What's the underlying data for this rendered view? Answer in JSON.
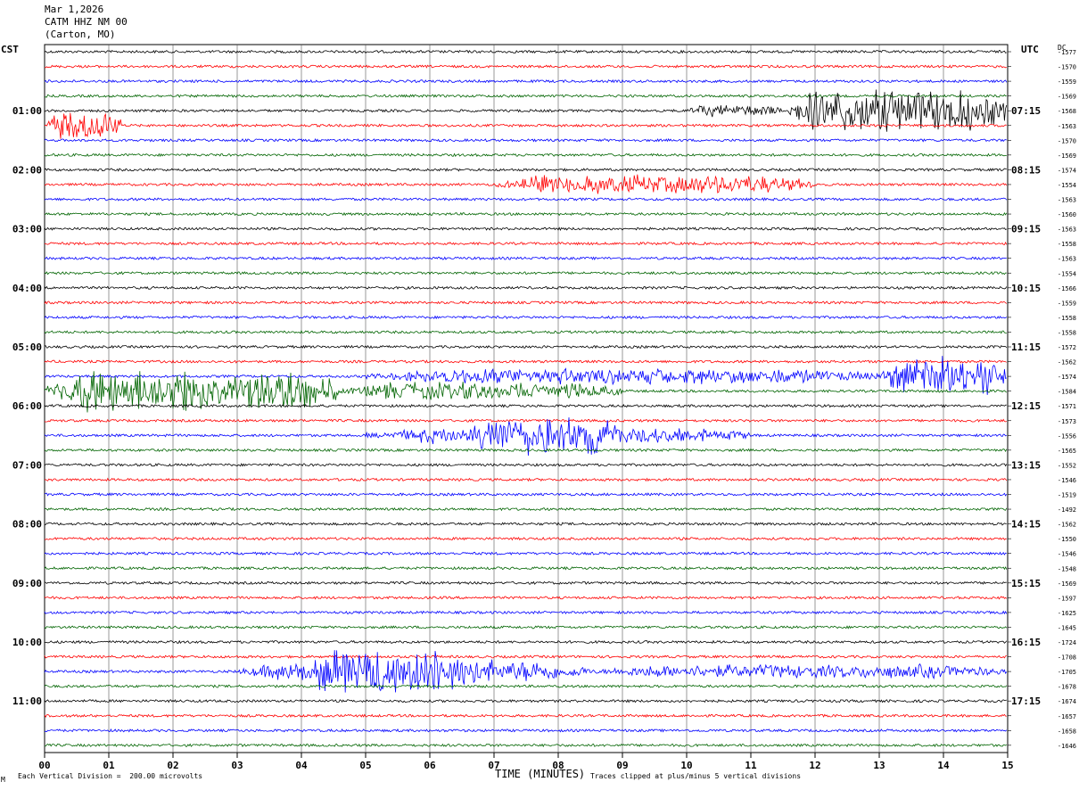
{
  "header": {
    "date": "Mar 1,2026",
    "station": "CATM HHZ NM 00",
    "location": "(Carton, MO)"
  },
  "left_timezone": "CST",
  "right_timezone": "UTC",
  "dc_label": "DC",
  "footer": {
    "scale_note": "Each Vertical Division =  200.00 microvolts",
    "clip_note": "Traces clipped at plus/minus 5 vertical divisions",
    "mark": "M"
  },
  "colors": {
    "trace_cycle": [
      "#000000",
      "#ff0000",
      "#0000ff",
      "#006400"
    ],
    "grid": "#000000"
  },
  "chart_data": {
    "type": "line",
    "title": "",
    "xlabel": "TIME (MINUTES)",
    "ylabel": "",
    "x_ticks": [
      "00",
      "01",
      "02",
      "03",
      "04",
      "05",
      "06",
      "07",
      "08",
      "09",
      "10",
      "11",
      "12",
      "13",
      "14",
      "15"
    ],
    "xlim": [
      0,
      15
    ],
    "minutes_per_trace": 15,
    "left_hour_labels": [
      {
        "trace": 4,
        "label": "01:00"
      },
      {
        "trace": 8,
        "label": "02:00"
      },
      {
        "trace": 12,
        "label": "03:00"
      },
      {
        "trace": 16,
        "label": "04:00"
      },
      {
        "trace": 20,
        "label": "05:00"
      },
      {
        "trace": 24,
        "label": "06:00"
      },
      {
        "trace": 28,
        "label": "07:00"
      },
      {
        "trace": 32,
        "label": "08:00"
      },
      {
        "trace": 36,
        "label": "09:00"
      },
      {
        "trace": 40,
        "label": "10:00"
      },
      {
        "trace": 44,
        "label": "11:00"
      }
    ],
    "right_hour_labels": [
      {
        "trace": 4,
        "label": "07:15"
      },
      {
        "trace": 8,
        "label": "08:15"
      },
      {
        "trace": 12,
        "label": "09:15"
      },
      {
        "trace": 16,
        "label": "10:15"
      },
      {
        "trace": 20,
        "label": "11:15"
      },
      {
        "trace": 24,
        "label": "12:15"
      },
      {
        "trace": 28,
        "label": "13:15"
      },
      {
        "trace": 32,
        "label": "14:15"
      },
      {
        "trace": 36,
        "label": "15:15"
      },
      {
        "trace": 40,
        "label": "16:15"
      },
      {
        "trace": 44,
        "label": "17:15"
      }
    ],
    "dc_offsets": [
      -1577,
      -1570,
      -1559,
      -1569,
      -1568,
      -1563,
      -1570,
      -1569,
      -1574,
      -1554,
      -1563,
      -1560,
      -1563,
      -1558,
      -1563,
      -1554,
      -1566,
      -1559,
      -1558,
      -1558,
      -1572,
      -1562,
      -1574,
      -1584,
      -1571,
      -1573,
      -1556,
      -1565,
      -1552,
      -1546,
      -1519,
      -1492,
      -1562,
      -1550,
      -1546,
      -1548,
      -1569,
      -1597,
      -1625,
      -1645,
      -1724,
      -1708,
      -1705,
      -1678,
      -1674,
      -1657,
      -1658,
      -1646
    ],
    "series": [
      {
        "trace": 4,
        "events": [
          {
            "start": 10.0,
            "end": 11.5,
            "amp": 0.5
          },
          {
            "start": 11.5,
            "end": 15.0,
            "amp": 2.6
          }
        ]
      },
      {
        "trace": 5,
        "events": [
          {
            "start": 0.0,
            "end": 1.2,
            "amp": 1.5
          }
        ]
      },
      {
        "trace": 9,
        "events": [
          {
            "start": 7.0,
            "end": 12.0,
            "amp": 0.9
          },
          {
            "start": 8.35,
            "end": 8.5,
            "amp": 2.0
          }
        ]
      },
      {
        "trace": 22,
        "events": [
          {
            "start": 5.0,
            "end": 13.0,
            "amp": 0.7
          },
          {
            "start": 13.0,
            "end": 15.0,
            "amp": 2.0
          }
        ]
      },
      {
        "trace": 23,
        "events": [
          {
            "start": 0.0,
            "end": 4.6,
            "amp": 2.5
          },
          {
            "start": 4.6,
            "end": 9.0,
            "amp": 0.8
          }
        ]
      },
      {
        "trace": 26,
        "events": [
          {
            "start": 6.5,
            "end": 9.0,
            "amp": 2.0
          },
          {
            "start": 5.0,
            "end": 11.0,
            "amp": 0.7
          }
        ]
      },
      {
        "trace": 42,
        "events": [
          {
            "start": 4.0,
            "end": 6.8,
            "amp": 2.8
          },
          {
            "start": 3.0,
            "end": 8.5,
            "amp": 1.1
          },
          {
            "start": 8.5,
            "end": 15.0,
            "amp": 0.6
          }
        ]
      }
    ]
  }
}
